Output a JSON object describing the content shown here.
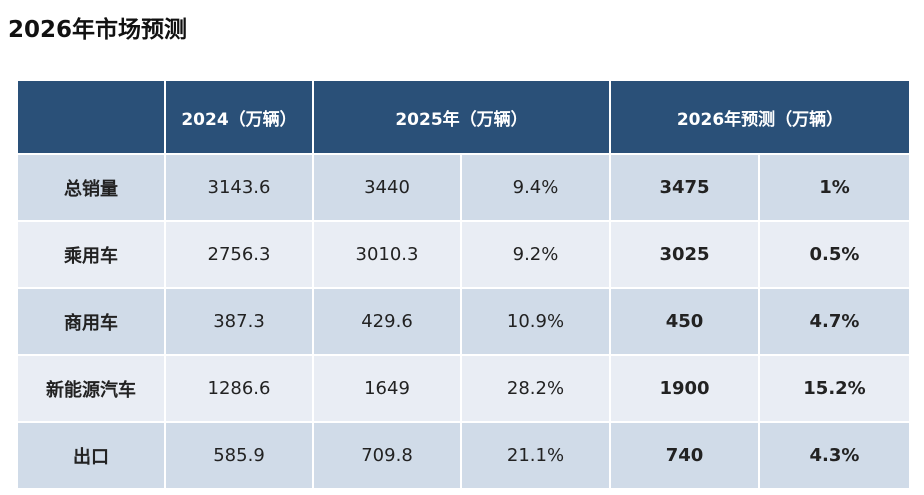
{
  "title": "2026年市场预测",
  "headers": [
    "",
    "2024（万辆）",
    "2025年（万辆）",
    "2026年预测（万辆）"
  ],
  "rows": [
    {
      "label": "总销量",
      "v2024": "3143.6",
      "v2025": "3440",
      "g2025": "9.4%",
      "v2026": "3475",
      "g2026": "1%"
    },
    {
      "label": "乘用车",
      "v2024": "2756.3",
      "v2025": "3010.3",
      "g2025": "9.2%",
      "v2026": "3025",
      "g2026": "0.5%"
    },
    {
      "label": "商用车",
      "v2024": "387.3",
      "v2025": "429.6",
      "g2025": "10.9%",
      "v2026": "450",
      "g2026": "4.7%"
    },
    {
      "label": "新能源汽车",
      "v2024": "1286.6",
      "v2025": "1649",
      "g2025": "28.2%",
      "v2026": "1900",
      "g2026": "15.2%"
    },
    {
      "label": "出口",
      "v2024": "585.9",
      "v2025": "709.8",
      "g2025": "21.1%",
      "v2026": "740",
      "g2026": "4.3%"
    }
  ],
  "colors": {
    "header": "#2a5078",
    "row_dark": "#d0dbe8",
    "row_light": "#e9edf4"
  }
}
